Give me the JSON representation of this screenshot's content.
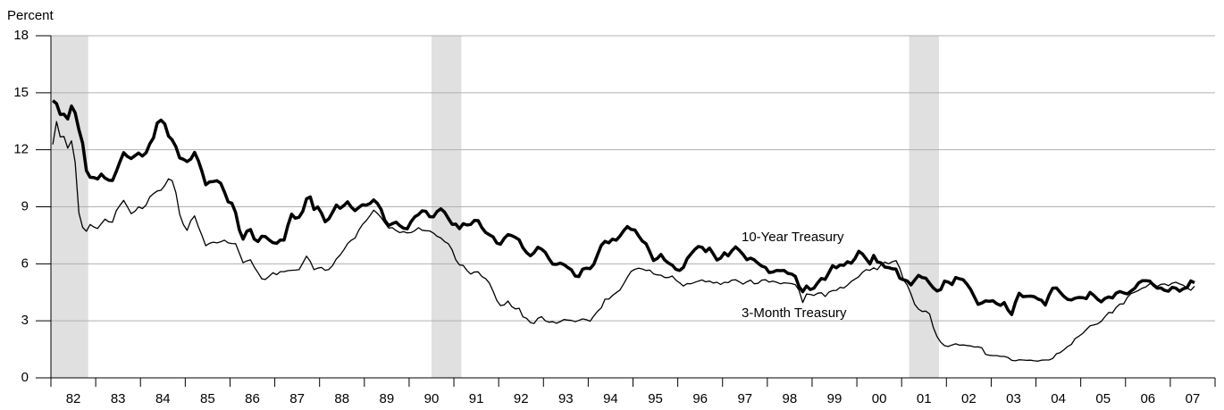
{
  "chart_data": {
    "type": "line",
    "y_label": "Percent",
    "categories": [
      "82",
      "83",
      "84",
      "85",
      "86",
      "87",
      "88",
      "89",
      "90",
      "91",
      "92",
      "93",
      "94",
      "95",
      "96",
      "97",
      "98",
      "99",
      "00",
      "01",
      "02",
      "03",
      "04",
      "05",
      "06",
      "07"
    ],
    "ylim": [
      0,
      18
    ],
    "yticks": [
      0,
      3,
      6,
      9,
      12,
      15,
      18
    ],
    "grid": true,
    "shaded_periods": [
      {
        "start": [
          0,
          0
        ],
        "end": [
          0,
          10
        ]
      },
      {
        "start": [
          8,
          6
        ],
        "end": [
          9,
          2
        ]
      },
      {
        "start": [
          19,
          2
        ],
        "end": [
          19,
          10
        ]
      }
    ],
    "annotations": [
      "10-Year Treasury",
      "3-Month Treasury"
    ],
    "series": [
      {
        "name": "10-Year Treasury",
        "color": "#000000",
        "width": 3.5,
        "values": [
          [
            14.59,
            14.43,
            13.86,
            13.87,
            13.62,
            14.3,
            13.95,
            13.06,
            12.34,
            10.91,
            10.55,
            10.54
          ],
          [
            10.46,
            10.72,
            10.51,
            10.4,
            10.38,
            10.85,
            11.38,
            11.85,
            11.65,
            11.54,
            11.69,
            11.83
          ],
          [
            11.67,
            11.84,
            12.32,
            12.63,
            13.41,
            13.56,
            13.36,
            12.72,
            12.52,
            12.16,
            11.57,
            11.5
          ],
          [
            11.38,
            11.51,
            11.86,
            11.43,
            10.85,
            10.16,
            10.31,
            10.33,
            10.37,
            10.24,
            9.78,
            9.26
          ],
          [
            9.19,
            8.7,
            7.78,
            7.3,
            7.71,
            7.8,
            7.3,
            7.17,
            7.45,
            7.43,
            7.25,
            7.11
          ],
          [
            7.08,
            7.25,
            7.25,
            8.02,
            8.61,
            8.4,
            8.45,
            8.76,
            9.42,
            9.52,
            8.86,
            8.99
          ],
          [
            8.67,
            8.21,
            8.37,
            8.72,
            9.09,
            8.92,
            9.06,
            9.26,
            8.98,
            8.8,
            8.96,
            9.11
          ],
          [
            9.09,
            9.17,
            9.36,
            9.18,
            8.86,
            8.28,
            8.02,
            8.11,
            8.19,
            8.01,
            7.87,
            7.84
          ],
          [
            8.21,
            8.47,
            8.59,
            8.79,
            8.76,
            8.48,
            8.47,
            8.75,
            8.89,
            8.72,
            8.39,
            8.08
          ],
          [
            8.09,
            7.85,
            8.11,
            8.04,
            8.07,
            8.28,
            8.27,
            7.9,
            7.65,
            7.53,
            7.42,
            7.09
          ],
          [
            7.03,
            7.34,
            7.54,
            7.48,
            7.39,
            7.26,
            6.84,
            6.59,
            6.42,
            6.59,
            6.87,
            6.77
          ],
          [
            6.6,
            6.26,
            5.98,
            5.97,
            6.04,
            5.96,
            5.81,
            5.68,
            5.36,
            5.33,
            5.72,
            5.77
          ],
          [
            5.75,
            5.97,
            6.48,
            6.97,
            7.18,
            7.1,
            7.3,
            7.24,
            7.46,
            7.74,
            7.96,
            7.81
          ],
          [
            7.78,
            7.47,
            7.2,
            7.06,
            6.63,
            6.17,
            6.28,
            6.49,
            6.2,
            6.04,
            5.93,
            5.71
          ],
          [
            5.65,
            5.81,
            6.27,
            6.51,
            6.74,
            6.91,
            6.87,
            6.64,
            6.83,
            6.53,
            6.2,
            6.3
          ],
          [
            6.58,
            6.42,
            6.69,
            6.89,
            6.71,
            6.49,
            6.22,
            6.3,
            6.21,
            6.03,
            5.88,
            5.81
          ],
          [
            5.54,
            5.57,
            5.65,
            5.64,
            5.65,
            5.5,
            5.46,
            5.34,
            4.81,
            4.53,
            4.83,
            4.65
          ],
          [
            4.72,
            5.0,
            5.23,
            5.18,
            5.54,
            5.9,
            5.79,
            5.94,
            5.92,
            6.11,
            6.03,
            6.28
          ],
          [
            6.66,
            6.52,
            6.26,
            5.99,
            6.44,
            6.1,
            6.05,
            5.83,
            5.8,
            5.74,
            5.72,
            5.24
          ],
          [
            5.16,
            5.1,
            4.89,
            5.14,
            5.39,
            5.28,
            5.24,
            4.97,
            4.73,
            4.57,
            4.65,
            5.09
          ],
          [
            5.04,
            4.91,
            5.28,
            5.21,
            5.16,
            4.93,
            4.65,
            4.26,
            3.87,
            3.94,
            4.05,
            4.03
          ],
          [
            4.05,
            3.9,
            3.81,
            3.96,
            3.57,
            3.33,
            3.98,
            4.45,
            4.27,
            4.29,
            4.3,
            4.27
          ],
          [
            4.15,
            4.08,
            3.83,
            4.35,
            4.72,
            4.73,
            4.5,
            4.28,
            4.13,
            4.1,
            4.19,
            4.23
          ],
          [
            4.22,
            4.17,
            4.5,
            4.34,
            4.14,
            4.0,
            4.18,
            4.26,
            4.2,
            4.46,
            4.54,
            4.47
          ],
          [
            4.42,
            4.57,
            4.72,
            4.99,
            5.11,
            5.11,
            5.09,
            4.88,
            4.72,
            4.73,
            4.6,
            4.56
          ],
          [
            4.76,
            4.72,
            4.56,
            4.69,
            4.75,
            5.1,
            5.0
          ]
        ]
      },
      {
        "name": "3-Month Treasury",
        "color": "#000000",
        "width": 1.3,
        "values": [
          [
            12.28,
            13.48,
            12.68,
            12.7,
            12.09,
            12.47,
            11.35,
            8.68,
            7.92,
            7.71,
            8.07,
            7.94
          ],
          [
            7.86,
            8.11,
            8.35,
            8.21,
            8.19,
            8.79,
            9.08,
            9.34,
            9.0,
            8.64,
            8.76,
            9.0
          ],
          [
            8.9,
            9.09,
            9.52,
            9.69,
            9.83,
            9.87,
            10.12,
            10.47,
            10.37,
            9.74,
            8.61,
            8.06
          ],
          [
            7.76,
            8.27,
            8.52,
            7.95,
            7.48,
            6.95,
            7.08,
            7.14,
            7.1,
            7.16,
            7.24,
            7.1
          ],
          [
            7.07,
            7.06,
            6.56,
            6.06,
            6.15,
            6.21,
            5.83,
            5.53,
            5.21,
            5.18,
            5.35,
            5.53
          ],
          [
            5.43,
            5.59,
            5.59,
            5.64,
            5.66,
            5.67,
            5.69,
            6.04,
            6.4,
            6.13,
            5.69,
            5.77
          ],
          [
            5.81,
            5.66,
            5.7,
            5.91,
            6.26,
            6.46,
            6.73,
            7.06,
            7.24,
            7.35,
            7.76,
            8.07
          ],
          [
            8.27,
            8.53,
            8.82,
            8.65,
            8.43,
            8.15,
            7.88,
            7.9,
            7.75,
            7.64,
            7.69,
            7.63
          ],
          [
            7.64,
            7.74,
            7.9,
            7.77,
            7.74,
            7.73,
            7.62,
            7.45,
            7.36,
            7.17,
            7.06,
            6.74
          ],
          [
            6.22,
            5.94,
            5.91,
            5.65,
            5.46,
            5.57,
            5.58,
            5.33,
            5.22,
            4.99,
            4.56,
            4.07
          ],
          [
            3.8,
            3.84,
            4.04,
            3.75,
            3.63,
            3.66,
            3.21,
            3.13,
            2.91,
            2.86,
            3.13,
            3.22
          ],
          [
            3.0,
            2.93,
            2.95,
            2.87,
            2.96,
            3.07,
            3.04,
            3.02,
            2.95,
            3.02,
            3.1,
            3.06
          ],
          [
            2.98,
            3.25,
            3.5,
            3.68,
            4.14,
            4.14,
            4.33,
            4.48,
            4.62,
            4.95,
            5.29,
            5.6
          ],
          [
            5.71,
            5.77,
            5.73,
            5.65,
            5.67,
            5.47,
            5.42,
            5.4,
            5.28,
            5.28,
            5.36,
            5.14
          ],
          [
            5.0,
            4.83,
            4.96,
            4.95,
            5.02,
            5.09,
            5.15,
            5.05,
            5.09,
            4.99,
            5.03,
            4.91
          ],
          [
            5.03,
            5.01,
            5.14,
            5.16,
            5.05,
            4.93,
            5.05,
            5.14,
            4.95,
            4.97,
            5.14,
            5.16
          ],
          [
            5.04,
            5.09,
            5.03,
            4.95,
            5.0,
            4.98,
            4.96,
            4.9,
            4.61,
            3.96,
            4.41,
            4.39
          ],
          [
            4.34,
            4.45,
            4.48,
            4.28,
            4.51,
            4.59,
            4.6,
            4.76,
            4.73,
            4.88,
            5.07,
            5.2
          ],
          [
            5.32,
            5.55,
            5.69,
            5.66,
            5.79,
            5.69,
            5.96,
            6.09,
            6.0,
            6.11,
            6.17,
            5.77
          ],
          [
            5.15,
            4.88,
            4.42,
            3.87,
            3.62,
            3.49,
            3.51,
            3.36,
            2.64,
            2.16,
            1.87,
            1.69
          ],
          [
            1.65,
            1.73,
            1.79,
            1.72,
            1.73,
            1.7,
            1.68,
            1.62,
            1.63,
            1.58,
            1.23,
            1.19
          ],
          [
            1.17,
            1.17,
            1.13,
            1.13,
            1.07,
            0.92,
            0.9,
            0.95,
            0.94,
            0.92,
            0.93,
            0.9
          ],
          [
            0.88,
            0.93,
            0.94,
            0.94,
            1.02,
            1.27,
            1.33,
            1.48,
            1.65,
            1.76,
            2.07,
            2.19
          ],
          [
            2.33,
            2.54,
            2.74,
            2.78,
            2.84,
            2.97,
            3.22,
            3.44,
            3.42,
            3.71,
            3.88,
            3.89
          ],
          [
            4.24,
            4.43,
            4.51,
            4.6,
            4.72,
            4.79,
            4.95,
            4.96,
            4.81,
            4.92,
            4.94,
            4.85
          ],
          [
            4.98,
            5.03,
            4.94,
            4.87,
            4.73,
            4.61,
            4.82
          ]
        ]
      }
    ]
  }
}
